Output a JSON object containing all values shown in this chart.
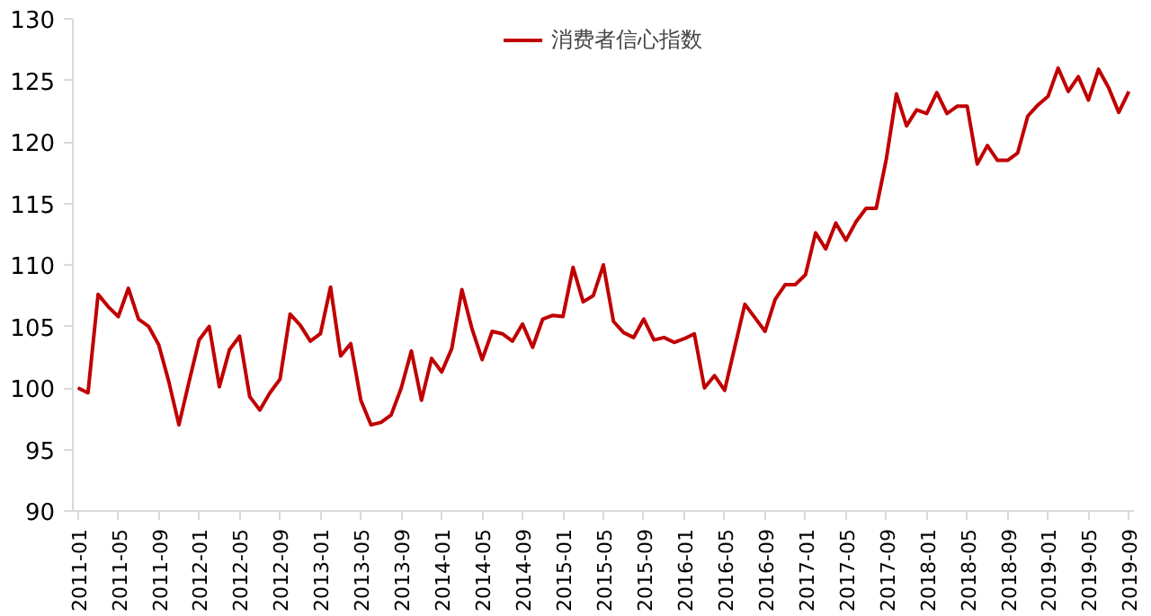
{
  "chart_data": {
    "type": "line",
    "categories": [
      "2011-01",
      null,
      null,
      null,
      "2011-05",
      null,
      null,
      null,
      "2011-09",
      null,
      null,
      null,
      "2012-01",
      null,
      null,
      null,
      "2012-05",
      null,
      null,
      null,
      "2012-09",
      null,
      null,
      null,
      "2013-01",
      null,
      null,
      null,
      "2013-05",
      null,
      null,
      null,
      "2013-09",
      null,
      null,
      null,
      "2014-01",
      null,
      null,
      null,
      "2014-05",
      null,
      null,
      null,
      "2014-09",
      null,
      null,
      null,
      "2015-01",
      null,
      null,
      null,
      "2015-05",
      null,
      null,
      null,
      "2015-09",
      null,
      null,
      null,
      "2016-01",
      null,
      null,
      null,
      "2016-05",
      null,
      null,
      null,
      "2016-09",
      null,
      null,
      null,
      "2017-01",
      null,
      null,
      null,
      "2017-05",
      null,
      null,
      null,
      "2017-09",
      null,
      null,
      null,
      "2018-01",
      null,
      null,
      null,
      "2018-05",
      null,
      null,
      null,
      "2018-09",
      null,
      null,
      null,
      "2019-01",
      null,
      null,
      null,
      "2019-05",
      null,
      null,
      null,
      "2019-09"
    ],
    "series": [
      {
        "name": "消费者信心指数",
        "color": "#c00000",
        "values": [
          100,
          99.6,
          107.6,
          106.6,
          105.8,
          108.1,
          105.6,
          105,
          103.5,
          100.5,
          97,
          100.5,
          103.9,
          105,
          100.1,
          103.1,
          104.2,
          99.3,
          98.2,
          99.6,
          100.7,
          106,
          105.1,
          103.8,
          104.4,
          108.2,
          102.6,
          103.6,
          99,
          97,
          97.2,
          97.8,
          100,
          103,
          99,
          102.4,
          101.3,
          103.2,
          108,
          104.8,
          102.3,
          104.6,
          104.4,
          103.8,
          105.2,
          103.3,
          105.6,
          105.9,
          105.8,
          109.8,
          107,
          107.5,
          110,
          105.4,
          104.5,
          104.1,
          105.6,
          103.9,
          104.1,
          103.7,
          104,
          104.4,
          100,
          101,
          99.8,
          103.3,
          106.8,
          105.7,
          104.6,
          107.2,
          108.4,
          108.4,
          109.2,
          112.6,
          111.3,
          113.4,
          112,
          113.5,
          114.6,
          114.6,
          118.6,
          123.9,
          121.3,
          122.6,
          122.3,
          124,
          122.3,
          122.9,
          122.9,
          118.2,
          119.7,
          118.5,
          118.5,
          119.1,
          122.1,
          123,
          123.7,
          126,
          124.1,
          125.3,
          123.4,
          125.9,
          124.4,
          122.4,
          124.1
        ]
      }
    ],
    "ylim": [
      90,
      130
    ],
    "yticks": [
      90,
      95,
      100,
      105,
      110,
      115,
      120,
      125,
      130
    ],
    "grid": false,
    "legend": "top",
    "marker": "none",
    "line_style": "solid"
  }
}
